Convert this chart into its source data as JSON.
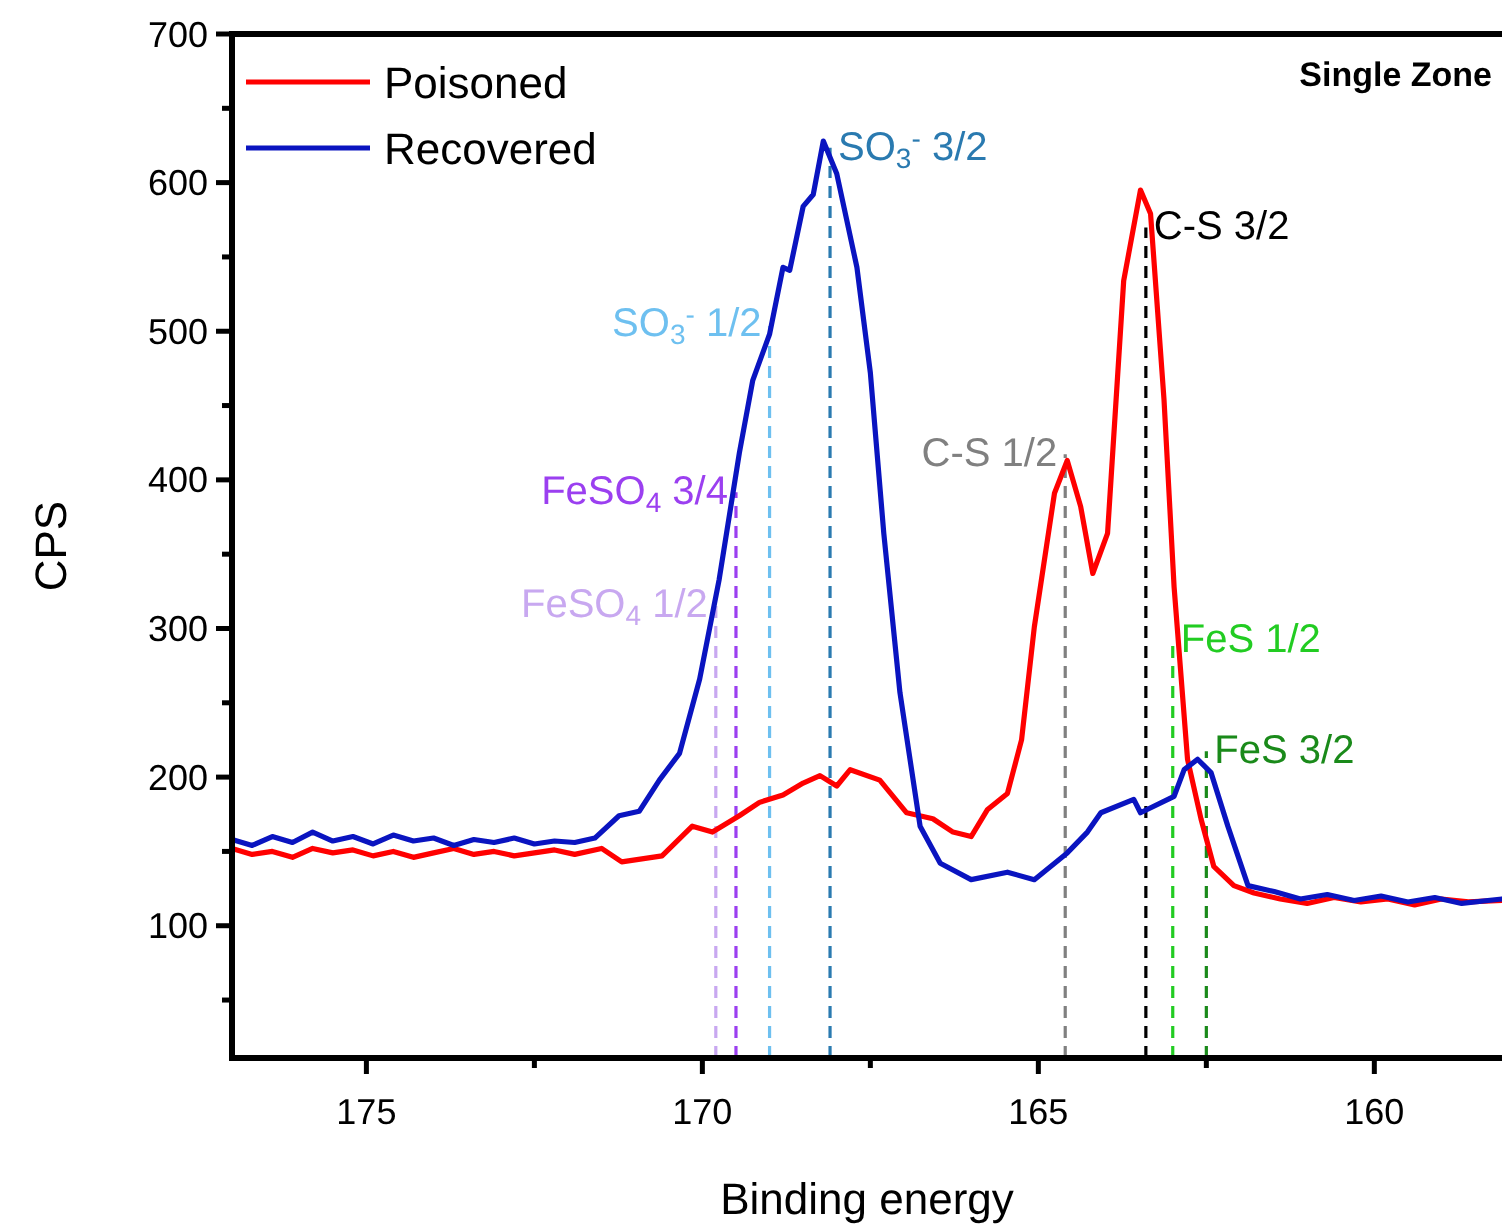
{
  "chart_data": {
    "type": "line",
    "xlabel": "Binding energy",
    "ylabel": "CPS",
    "xlim": [
      177,
      158.1
    ],
    "ylim": [
      11,
      700
    ],
    "xticks": [
      175,
      {
        "value": 172.5,
        "label": null
      },
      170,
      {
        "value": 167.5,
        "label": null
      },
      165,
      {
        "value": 162.5,
        "label": null
      },
      160
    ],
    "yticks": [
      {
        "value": 50,
        "label": null
      },
      100,
      {
        "value": 150,
        "label": null
      },
      200,
      {
        "value": 250,
        "label": null
      },
      300,
      {
        "value": 350,
        "label": null
      },
      400,
      {
        "value": 450,
        "label": null
      },
      500,
      {
        "value": 550,
        "label": null
      },
      600,
      {
        "value": 650,
        "label": null
      },
      700
    ],
    "grid": false,
    "legend": "top left",
    "marker": "none",
    "line_style": "solid",
    "series": [
      {
        "name": "Poisoned",
        "color": "#ff0000",
        "x": [
          177,
          176.7,
          176.4,
          176.1,
          175.8,
          175.5,
          175.2,
          174.9,
          174.6,
          174.3,
          174,
          173.7,
          173.4,
          173.1,
          172.8,
          172.5,
          172.2,
          171.9,
          171.5,
          171.2,
          170.9,
          170.6,
          170.15,
          169.85,
          169.45,
          169.15,
          168.8,
          168.5,
          168.25,
          168.0,
          167.8,
          167.36,
          166.96,
          166.57,
          166.27,
          166.0,
          165.76,
          165.46,
          165.25,
          165.06,
          164.76,
          164.57,
          164.37,
          164.19,
          163.97,
          163.73,
          163.48,
          163.33,
          163.13,
          162.98,
          162.78,
          162.58,
          162.39,
          162.09,
          161.79,
          161.4,
          161.0,
          160.6,
          160.2,
          159.8,
          159.4,
          159.0,
          158.6,
          158.1
        ],
        "values": [
          152,
          148,
          150,
          146,
          152,
          149,
          151,
          147,
          150,
          146,
          149,
          152,
          148,
          150,
          147,
          149,
          151,
          148,
          152,
          143,
          145,
          147,
          167,
          163,
          174,
          183,
          188,
          196,
          201,
          194,
          205,
          198,
          176,
          172,
          163,
          160,
          178,
          189,
          225,
          301,
          391,
          413,
          382,
          337,
          364,
          534,
          595,
          579,
          454,
          328,
          212,
          172,
          140,
          127,
          122,
          118,
          115,
          119,
          116,
          118,
          114,
          118,
          116,
          117
        ]
      },
      {
        "name": "Recovered",
        "color": "#0a14c0",
        "x": [
          177,
          176.7,
          176.4,
          176.1,
          175.8,
          175.5,
          175.2,
          174.9,
          174.6,
          174.3,
          174,
          173.7,
          173.4,
          173.1,
          172.8,
          172.5,
          172.2,
          171.9,
          171.6,
          171.24,
          170.94,
          170.64,
          170.34,
          170.04,
          169.75,
          169.45,
          169.25,
          169.0,
          168.8,
          168.7,
          168.5,
          168.35,
          168.2,
          168.0,
          167.7,
          167.5,
          167.3,
          167.06,
          166.76,
          166.46,
          166.0,
          165.46,
          165.06,
          164.57,
          164.27,
          164.07,
          163.58,
          163.48,
          162.98,
          162.83,
          162.63,
          162.43,
          162.18,
          161.88,
          161.49,
          161.1,
          160.7,
          160.3,
          159.9,
          159.5,
          159.1,
          158.7,
          158.1
        ],
        "values": [
          158,
          154,
          160,
          156,
          163,
          157,
          160,
          155,
          161,
          157,
          159,
          154,
          158,
          156,
          159,
          155,
          157,
          156,
          159,
          174,
          177,
          198,
          216,
          266,
          333,
          418,
          467,
          498,
          543,
          541,
          584,
          592,
          628,
          606,
          543,
          472,
          364,
          257,
          167,
          142,
          131,
          136,
          131,
          149,
          163,
          176,
          185,
          176,
          187,
          205,
          212,
          203,
          167,
          127,
          123,
          118,
          121,
          117,
          120,
          116,
          119,
          115,
          118
        ]
      }
    ],
    "ref_lines": [
      {
        "axis": "x",
        "value": 169.8,
        "label": "FeSO$_{4}$ 1/2",
        "color": "#c8a8f0",
        "line_style": "dashed"
      },
      {
        "axis": "x",
        "value": 169.5,
        "label": "FeSO$_{4}$ 3/4",
        "color": "#9b3ff0",
        "line_style": "dashed"
      },
      {
        "axis": "x",
        "value": 169.0,
        "label": "SO$_{3}$$^{-}$ 1/2",
        "color": "#6ec0f0",
        "line_style": "dashed"
      },
      {
        "axis": "x",
        "value": 168.1,
        "label": "SO$_{3}$$^{-}$ 3/2",
        "color": "#2a7ab0",
        "line_style": "dashed"
      },
      {
        "axis": "x",
        "value": 164.6,
        "label": "C-S 1/2",
        "color": "#808080",
        "line_style": "dashed"
      },
      {
        "axis": "x",
        "value": 163.4,
        "label": "C-S 3/2",
        "color": "#000000",
        "line_style": "dashed"
      },
      {
        "axis": "x",
        "value": 162.5,
        "label": "FeS 3/2",
        "color": "#1a8a1a",
        "line_style": "dashed"
      },
      {
        "axis": "x",
        "value": 163.0,
        "label": "FeS 1/2",
        "color": "#22cc22",
        "line_style": "dashed"
      }
    ],
    "annotations": [
      "Single Zone"
    ]
  }
}
